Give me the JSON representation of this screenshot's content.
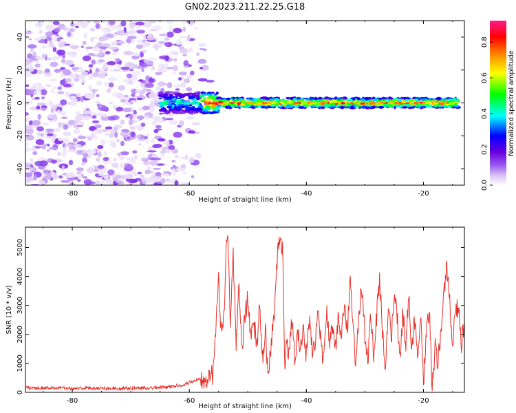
{
  "title": "GN02.2023.211.22.25.G18",
  "chart_data": [
    {
      "type": "heatmap",
      "title": "GN02.2023.211.22.25.G18",
      "xlabel": "Height of straight line (km)",
      "ylabel": "Frequency (Hz)",
      "xlim": [
        -88,
        -13
      ],
      "ylim": [
        -50,
        50
      ],
      "xticks": [
        -80,
        -60,
        -40,
        -20
      ],
      "yticks": [
        -40,
        -20,
        0,
        20,
        40
      ],
      "colorbar": {
        "label": "Normalized spectral amplitude",
        "range": [
          0.0,
          0.92
        ],
        "ticks": [
          0.0,
          0.2,
          0.4,
          0.6,
          0.8
        ],
        "colormap": [
          "#ffffff",
          "#d9c2f5",
          "#9b5cf0",
          "#6a00e0",
          "#0000ff",
          "#00ffff",
          "#00ff00",
          "#ffff00",
          "#ff8000",
          "#ff0000",
          "#ff1a8c"
        ]
      },
      "features": [
        {
          "name": "noise-region",
          "x_range": [
            -88,
            -58
          ],
          "freq_range": [
            -50,
            50
          ],
          "amplitude": [
            0.02,
            0.15
          ]
        },
        {
          "name": "signal-band",
          "x_range": [
            -65,
            -14
          ],
          "freq_center": 0,
          "freq_halfwidth": 3,
          "amplitude": [
            0.2,
            0.92
          ]
        }
      ]
    },
    {
      "type": "line",
      "xlabel": "Height of straight line (km)",
      "ylabel": "SNR (10 * v/v)",
      "xlim": [
        -88,
        -13
      ],
      "ylim": [
        0,
        5700
      ],
      "xticks": [
        -80,
        -60,
        -40,
        -20
      ],
      "yticks": [
        0,
        1000,
        2000,
        3000,
        4000,
        5000
      ],
      "series": [
        {
          "name": "SNR",
          "color": "#e8302a",
          "x": [
            -88,
            -84,
            -80,
            -76,
            -72,
            -68,
            -64,
            -61,
            -59,
            -57.5,
            -56,
            -55.5,
            -55,
            -54.5,
            -54,
            -53.6,
            -53.3,
            -53,
            -52.5,
            -52,
            -51.5,
            -51,
            -50.5,
            -50,
            -49.5,
            -49,
            -48.5,
            -48,
            -47.5,
            -47,
            -46.5,
            -46,
            -45.5,
            -45,
            -44.5,
            -44,
            -43.7,
            -43.4,
            -43,
            -42.5,
            -42,
            -41.5,
            -41,
            -40.5,
            -40,
            -39.5,
            -39,
            -38.5,
            -38,
            -37.5,
            -37,
            -36.5,
            -36,
            -35.5,
            -35,
            -34.5,
            -34,
            -33.5,
            -33,
            -32.5,
            -32,
            -31.5,
            -31,
            -30.5,
            -30,
            -29.5,
            -29,
            -28.5,
            -28,
            -27.5,
            -27,
            -26.5,
            -26,
            -25.5,
            -25,
            -24.5,
            -24,
            -23.5,
            -23,
            -22.5,
            -22,
            -21.5,
            -21,
            -20.5,
            -20,
            -19.5,
            -19,
            -18.5,
            -18,
            -17.5,
            -17,
            -16.5,
            -16,
            -15.5,
            -15,
            -14.5,
            -14,
            -13.5,
            -13
          ],
          "values": [
            150,
            160,
            140,
            150,
            130,
            150,
            170,
            260,
            420,
            500,
            600,
            1900,
            4000,
            1800,
            3200,
            5600,
            4900,
            2300,
            4800,
            1500,
            3700,
            1400,
            2700,
            3200,
            1900,
            2600,
            1500,
            2900,
            1100,
            2100,
            500,
            1700,
            2600,
            4600,
            5600,
            4700,
            900,
            1800,
            1200,
            2400,
            1300,
            2000,
            1500,
            2100,
            1200,
            2500,
            1400,
            1800,
            2900,
            1600,
            1100,
            2700,
            1800,
            2100,
            1500,
            2600,
            2100,
            3200,
            2000,
            4000,
            2100,
            900,
            2800,
            3600,
            2000,
            1100,
            2800,
            1200,
            2600,
            3900,
            2200,
            900,
            2900,
            1900,
            3200,
            2600,
            1200,
            2800,
            1700,
            3300,
            1600,
            2500,
            1200,
            2600,
            300,
            2000,
            2800,
            200,
            1500,
            1000,
            2200,
            3400,
            4300,
            3200,
            1500,
            3000,
            2800,
            1700,
            2400
          ]
        }
      ]
    }
  ]
}
